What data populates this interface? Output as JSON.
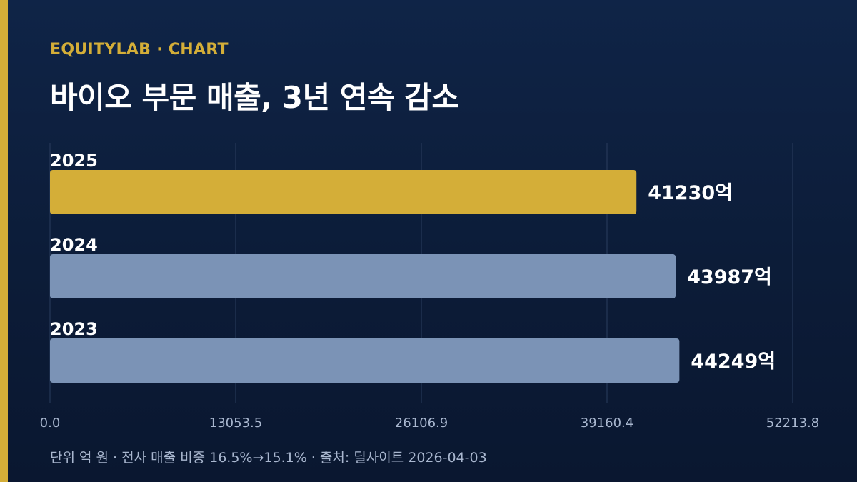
{
  "brand": "EQUITYLAB · CHART",
  "title": "바이오 부문 매출, 3년 연속 감소",
  "footnote": "단위 억 원 · 전사 매출 비중 16.5%→15.1% · 출처: 딜사이트 2026-04-03",
  "colors": {
    "accent": "#d4ae38",
    "bar_highlight": "#d4ae38",
    "bar_default": "#7b93b6",
    "grid": "#2a3d5e",
    "tick_label": "#a9b7cf"
  },
  "chart_data": {
    "type": "bar",
    "orientation": "horizontal",
    "categories": [
      "2025",
      "2024",
      "2023"
    ],
    "values": [
      41230,
      43987,
      44249
    ],
    "value_labels": [
      "41230억",
      "43987억",
      "44249억"
    ],
    "highlight": "2025",
    "xlim": [
      0,
      52213.8
    ],
    "xticks": [
      0,
      13053.5,
      26106.9,
      39160.4,
      52213.8
    ],
    "xtick_labels": [
      "0.0",
      "13053.5",
      "26106.9",
      "39160.4",
      "52213.8"
    ],
    "grid": true
  }
}
